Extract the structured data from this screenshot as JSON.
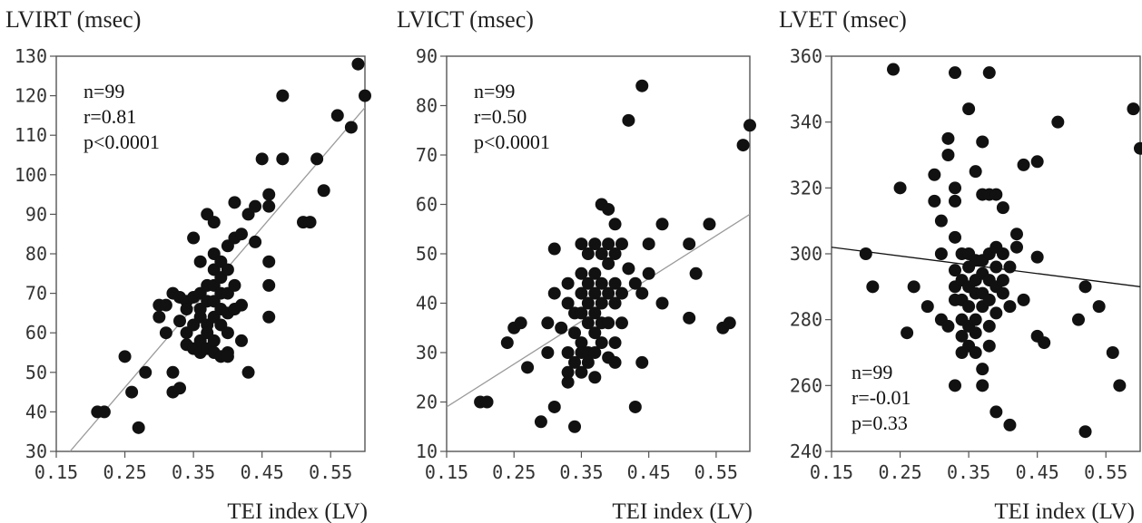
{
  "chart_data": [
    {
      "type": "scatter",
      "title": "LVIRT (msec)",
      "xlabel": "TEI index (LV)",
      "ylabel": "",
      "xlim": [
        0.15,
        0.6
      ],
      "ylim": [
        30,
        130
      ],
      "x_ticks": [
        "0.15",
        "0.25",
        "0.35",
        "0.45",
        "0.55"
      ],
      "y_ticks": [
        "30",
        "40",
        "50",
        "60",
        "70",
        "80",
        "90",
        "100",
        "110",
        "120",
        "130"
      ],
      "stats": [
        "n=99",
        "r=0.81",
        "p<0.0001"
      ],
      "stats_position": "top-left",
      "fit_line": {
        "x": [
          0.17,
          0.6
        ],
        "y": [
          30,
          117
        ],
        "color": "#9a9a9a"
      },
      "points": [
        [
          0.21,
          40
        ],
        [
          0.22,
          40
        ],
        [
          0.25,
          54
        ],
        [
          0.26,
          45
        ],
        [
          0.27,
          36
        ],
        [
          0.28,
          50
        ],
        [
          0.3,
          67
        ],
        [
          0.3,
          64
        ],
        [
          0.31,
          60
        ],
        [
          0.31,
          67
        ],
        [
          0.32,
          50
        ],
        [
          0.32,
          45
        ],
        [
          0.33,
          46
        ],
        [
          0.32,
          70
        ],
        [
          0.33,
          69
        ],
        [
          0.33,
          63
        ],
        [
          0.34,
          68
        ],
        [
          0.34,
          66
        ],
        [
          0.34,
          60
        ],
        [
          0.34,
          57
        ],
        [
          0.35,
          69
        ],
        [
          0.35,
          62
        ],
        [
          0.35,
          56
        ],
        [
          0.35,
          84
        ],
        [
          0.36,
          78
        ],
        [
          0.36,
          70
        ],
        [
          0.36,
          66
        ],
        [
          0.36,
          64
        ],
        [
          0.36,
          58
        ],
        [
          0.36,
          55
        ],
        [
          0.37,
          72
        ],
        [
          0.37,
          68
        ],
        [
          0.37,
          62
        ],
        [
          0.37,
          60
        ],
        [
          0.37,
          56
        ],
        [
          0.37,
          90
        ],
        [
          0.38,
          88
        ],
        [
          0.38,
          80
        ],
        [
          0.38,
          76
        ],
        [
          0.38,
          72
        ],
        [
          0.38,
          68
        ],
        [
          0.38,
          64
        ],
        [
          0.38,
          58
        ],
        [
          0.38,
          55
        ],
        [
          0.39,
          78
        ],
        [
          0.39,
          74
        ],
        [
          0.39,
          70
        ],
        [
          0.39,
          66
        ],
        [
          0.39,
          62
        ],
        [
          0.39,
          54
        ],
        [
          0.4,
          82
        ],
        [
          0.4,
          76
        ],
        [
          0.4,
          70
        ],
        [
          0.4,
          65
        ],
        [
          0.4,
          60
        ],
        [
          0.4,
          55
        ],
        [
          0.4,
          54
        ],
        [
          0.41,
          93
        ],
        [
          0.41,
          84
        ],
        [
          0.41,
          72
        ],
        [
          0.41,
          66
        ],
        [
          0.42,
          85
        ],
        [
          0.42,
          67
        ],
        [
          0.42,
          58
        ],
        [
          0.43,
          90
        ],
        [
          0.43,
          50
        ],
        [
          0.44,
          92
        ],
        [
          0.44,
          83
        ],
        [
          0.45,
          104
        ],
        [
          0.46,
          95
        ],
        [
          0.46,
          92
        ],
        [
          0.46,
          78
        ],
        [
          0.46,
          72
        ],
        [
          0.46,
          64
        ],
        [
          0.48,
          120
        ],
        [
          0.48,
          104
        ],
        [
          0.51,
          88
        ],
        [
          0.52,
          88
        ],
        [
          0.53,
          104
        ],
        [
          0.54,
          96
        ],
        [
          0.56,
          115
        ],
        [
          0.58,
          112
        ],
        [
          0.59,
          128
        ],
        [
          0.6,
          120
        ]
      ]
    },
    {
      "type": "scatter",
      "title": "LVICT (msec)",
      "xlabel": "TEI index (LV)",
      "ylabel": "",
      "xlim": [
        0.15,
        0.6
      ],
      "ylim": [
        10,
        90
      ],
      "x_ticks": [
        "0.15",
        "0.25",
        "0.35",
        "0.45",
        "0.55"
      ],
      "y_ticks": [
        "10",
        "20",
        "30",
        "40",
        "50",
        "60",
        "70",
        "80",
        "90"
      ],
      "stats": [
        "n=99",
        "r=0.50",
        "p<0.0001"
      ],
      "stats_position": "top-left",
      "fit_line": {
        "x": [
          0.15,
          0.6
        ],
        "y": [
          19,
          58
        ],
        "color": "#9a9a9a"
      },
      "points": [
        [
          0.2,
          20
        ],
        [
          0.21,
          20
        ],
        [
          0.24,
          32
        ],
        [
          0.25,
          35
        ],
        [
          0.26,
          36
        ],
        [
          0.27,
          27
        ],
        [
          0.29,
          16
        ],
        [
          0.3,
          30
        ],
        [
          0.3,
          36
        ],
        [
          0.31,
          19
        ],
        [
          0.31,
          42
        ],
        [
          0.31,
          51
        ],
        [
          0.32,
          35
        ],
        [
          0.33,
          44
        ],
        [
          0.33,
          40
        ],
        [
          0.33,
          30
        ],
        [
          0.33,
          26
        ],
        [
          0.33,
          24
        ],
        [
          0.34,
          38
        ],
        [
          0.34,
          34
        ],
        [
          0.34,
          28
        ],
        [
          0.34,
          15
        ],
        [
          0.35,
          52
        ],
        [
          0.35,
          46
        ],
        [
          0.35,
          42
        ],
        [
          0.35,
          38
        ],
        [
          0.35,
          32
        ],
        [
          0.35,
          30
        ],
        [
          0.35,
          26
        ],
        [
          0.36,
          50
        ],
        [
          0.36,
          44
        ],
        [
          0.36,
          40
        ],
        [
          0.36,
          36
        ],
        [
          0.36,
          30
        ],
        [
          0.36,
          28
        ],
        [
          0.37,
          52
        ],
        [
          0.37,
          46
        ],
        [
          0.37,
          42
        ],
        [
          0.37,
          38
        ],
        [
          0.37,
          34
        ],
        [
          0.37,
          30
        ],
        [
          0.37,
          25
        ],
        [
          0.38,
          60
        ],
        [
          0.38,
          50
        ],
        [
          0.38,
          44
        ],
        [
          0.38,
          40
        ],
        [
          0.38,
          36
        ],
        [
          0.38,
          32
        ],
        [
          0.39,
          59
        ],
        [
          0.39,
          52
        ],
        [
          0.39,
          48
        ],
        [
          0.39,
          42
        ],
        [
          0.39,
          36
        ],
        [
          0.39,
          29
        ],
        [
          0.4,
          56
        ],
        [
          0.4,
          50
        ],
        [
          0.4,
          44
        ],
        [
          0.4,
          40
        ],
        [
          0.4,
          32
        ],
        [
          0.4,
          28
        ],
        [
          0.41,
          52
        ],
        [
          0.41,
          42
        ],
        [
          0.41,
          36
        ],
        [
          0.42,
          77
        ],
        [
          0.42,
          47
        ],
        [
          0.43,
          44
        ],
        [
          0.43,
          19
        ],
        [
          0.44,
          84
        ],
        [
          0.44,
          42
        ],
        [
          0.44,
          28
        ],
        [
          0.45,
          46
        ],
        [
          0.45,
          52
        ],
        [
          0.47,
          56
        ],
        [
          0.47,
          40
        ],
        [
          0.51,
          52
        ],
        [
          0.51,
          37
        ],
        [
          0.52,
          46
        ],
        [
          0.54,
          56
        ],
        [
          0.56,
          35
        ],
        [
          0.57,
          36
        ],
        [
          0.59,
          72
        ],
        [
          0.6,
          76
        ]
      ]
    },
    {
      "type": "scatter",
      "title": "LVET (msec)",
      "xlabel": "TEI index (LV)",
      "ylabel": "",
      "xlim": [
        0.15,
        0.6
      ],
      "ylim": [
        240,
        360
      ],
      "x_ticks": [
        "0.15",
        "0.25",
        "0.35",
        "0.45",
        "0.55"
      ],
      "y_ticks": [
        "240",
        "260",
        "280",
        "300",
        "320",
        "340",
        "360"
      ],
      "stats": [
        "n=99",
        "r=-0.01",
        "p=0.33"
      ],
      "stats_position": "bottom-left",
      "fit_line": {
        "x": [
          0.15,
          0.6
        ],
        "y": [
          302,
          290
        ],
        "color": "#111111"
      },
      "points": [
        [
          0.2,
          300
        ],
        [
          0.21,
          290
        ],
        [
          0.24,
          356
        ],
        [
          0.25,
          320
        ],
        [
          0.26,
          276
        ],
        [
          0.27,
          290
        ],
        [
          0.29,
          284
        ],
        [
          0.3,
          324
        ],
        [
          0.3,
          316
        ],
        [
          0.31,
          310
        ],
        [
          0.31,
          300
        ],
        [
          0.31,
          280
        ],
        [
          0.32,
          335
        ],
        [
          0.32,
          330
        ],
        [
          0.32,
          278
        ],
        [
          0.33,
          355
        ],
        [
          0.33,
          320
        ],
        [
          0.33,
          316
        ],
        [
          0.33,
          305
        ],
        [
          0.33,
          295
        ],
        [
          0.33,
          290
        ],
        [
          0.33,
          286
        ],
        [
          0.33,
          260
        ],
        [
          0.34,
          300
        ],
        [
          0.34,
          292
        ],
        [
          0.34,
          286
        ],
        [
          0.34,
          280
        ],
        [
          0.34,
          275
        ],
        [
          0.34,
          270
        ],
        [
          0.35,
          344
        ],
        [
          0.35,
          300
        ],
        [
          0.35,
          296
        ],
        [
          0.35,
          290
        ],
        [
          0.35,
          284
        ],
        [
          0.35,
          278
        ],
        [
          0.35,
          272
        ],
        [
          0.36,
          325
        ],
        [
          0.36,
          298
        ],
        [
          0.36,
          292
        ],
        [
          0.36,
          288
        ],
        [
          0.36,
          280
        ],
        [
          0.36,
          276
        ],
        [
          0.36,
          270
        ],
        [
          0.37,
          334
        ],
        [
          0.37,
          318
        ],
        [
          0.37,
          298
        ],
        [
          0.37,
          294
        ],
        [
          0.37,
          288
        ],
        [
          0.37,
          284
        ],
        [
          0.37,
          265
        ],
        [
          0.37,
          260
        ],
        [
          0.38,
          355
        ],
        [
          0.38,
          318
        ],
        [
          0.38,
          300
        ],
        [
          0.38,
          292
        ],
        [
          0.38,
          286
        ],
        [
          0.38,
          278
        ],
        [
          0.38,
          272
        ],
        [
          0.39,
          318
        ],
        [
          0.39,
          302
        ],
        [
          0.39,
          296
        ],
        [
          0.39,
          290
        ],
        [
          0.39,
          282
        ],
        [
          0.39,
          252
        ],
        [
          0.4,
          314
        ],
        [
          0.4,
          300
        ],
        [
          0.4,
          292
        ],
        [
          0.4,
          288
        ],
        [
          0.41,
          296
        ],
        [
          0.41,
          284
        ],
        [
          0.41,
          248
        ],
        [
          0.42,
          306
        ],
        [
          0.42,
          302
        ],
        [
          0.43,
          327
        ],
        [
          0.43,
          286
        ],
        [
          0.45,
          328
        ],
        [
          0.45,
          299
        ],
        [
          0.45,
          275
        ],
        [
          0.46,
          273
        ],
        [
          0.48,
          340
        ],
        [
          0.51,
          280
        ],
        [
          0.52,
          246
        ],
        [
          0.52,
          290
        ],
        [
          0.54,
          284
        ],
        [
          0.56,
          270
        ],
        [
          0.57,
          260
        ],
        [
          0.59,
          344
        ],
        [
          0.6,
          332
        ]
      ]
    }
  ]
}
